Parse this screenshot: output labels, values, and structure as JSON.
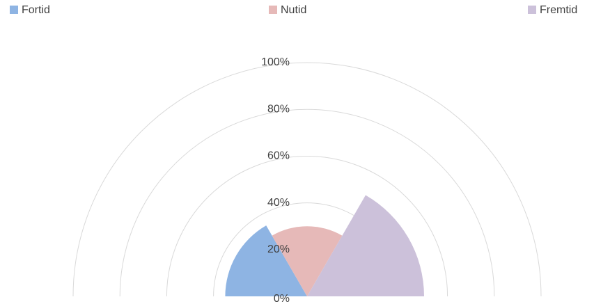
{
  "chart_data": {
    "type": "polar-area",
    "categories": [
      "Fortid",
      "Nutid",
      "Fremtid"
    ],
    "values": [
      35,
      30,
      50
    ],
    "colors": [
      "#8eb4e3",
      "#e6b9b8",
      "#ccc1da"
    ],
    "ylim": [
      0,
      100
    ],
    "yticks": [
      {
        "value": 0,
        "label": "0%"
      },
      {
        "value": 20,
        "label": "20%"
      },
      {
        "value": 40,
        "label": "40%"
      },
      {
        "value": 60,
        "label": "60%"
      },
      {
        "value": 80,
        "label": "80%"
      },
      {
        "value": 100,
        "label": "100%"
      }
    ],
    "grid": true,
    "legend": "top"
  }
}
